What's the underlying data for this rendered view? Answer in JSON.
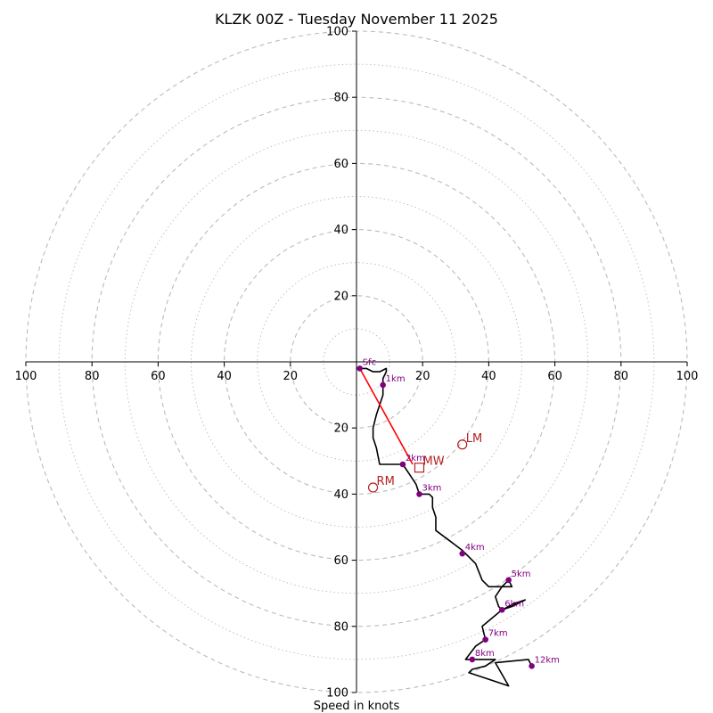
{
  "chart_data": {
    "type": "hodograph",
    "title": "KLZK 00Z - Tuesday November 11 2025",
    "xlabel": "Speed in knots",
    "range": [
      -100,
      100
    ],
    "major_ring_step": 20,
    "minor_ring_step": 10,
    "tick_values": [
      20,
      40,
      60,
      80,
      100
    ],
    "tick_labels": {
      "x": [
        "100",
        "80",
        "60",
        "40",
        "20",
        "20",
        "40",
        "60",
        "80",
        "100"
      ],
      "y": [
        "100",
        "80",
        "60",
        "40",
        "20",
        "20",
        "40",
        "60",
        "80",
        "100"
      ]
    },
    "colors": {
      "trace": "#000000",
      "height_points": "#800080",
      "shear_vector": "#ff0000",
      "motion_markers": "#b22222",
      "rings": "#bbbbbb"
    },
    "trace": [
      [
        1,
        -2
      ],
      [
        3,
        -2
      ],
      [
        5,
        -3
      ],
      [
        7,
        -3
      ],
      [
        9,
        -2
      ],
      [
        9,
        -3
      ],
      [
        8,
        -5
      ],
      [
        8,
        -7
      ],
      [
        8,
        -10
      ],
      [
        7,
        -13
      ],
      [
        6,
        -16
      ],
      [
        5,
        -20
      ],
      [
        5,
        -23
      ],
      [
        6,
        -26
      ],
      [
        7,
        -31
      ],
      [
        11,
        -31
      ],
      [
        14,
        -31
      ],
      [
        16,
        -34
      ],
      [
        18,
        -37
      ],
      [
        19,
        -40
      ],
      [
        22,
        -40
      ],
      [
        23,
        -41
      ],
      [
        23,
        -44
      ],
      [
        24,
        -47
      ],
      [
        24,
        -51
      ],
      [
        28,
        -54
      ],
      [
        32,
        -57
      ],
      [
        36,
        -61
      ],
      [
        38,
        -66
      ],
      [
        40,
        -68
      ],
      [
        44,
        -68
      ],
      [
        46,
        -66
      ],
      [
        47,
        -68
      ],
      [
        44,
        -68
      ],
      [
        42,
        -71
      ],
      [
        43,
        -74
      ],
      [
        44,
        -75
      ],
      [
        48,
        -73
      ],
      [
        51,
        -72
      ],
      [
        47,
        -74
      ],
      [
        44,
        -75
      ],
      [
        38,
        -80
      ],
      [
        39,
        -84
      ],
      [
        36,
        -86
      ],
      [
        33,
        -90
      ],
      [
        36,
        -90
      ],
      [
        42,
        -90
      ],
      [
        39,
        -92
      ],
      [
        35,
        -93
      ],
      [
        34,
        -94
      ],
      [
        46,
        -98
      ],
      [
        42,
        -91
      ],
      [
        52,
        -90
      ],
      [
        53,
        -92
      ]
    ],
    "height_points": [
      {
        "label": "Sfc",
        "x": 1,
        "y": -2
      },
      {
        "label": "1km",
        "x": 8,
        "y": -7
      },
      {
        "label": "2km",
        "x": 14,
        "y": -31
      },
      {
        "label": "3km",
        "x": 19,
        "y": -40
      },
      {
        "label": "4km",
        "x": 32,
        "y": -58
      },
      {
        "label": "5km",
        "x": 46,
        "y": -66
      },
      {
        "label": "6km",
        "x": 44,
        "y": -75
      },
      {
        "label": "7km",
        "x": 39,
        "y": -84
      },
      {
        "label": "8km",
        "x": 35,
        "y": -90
      },
      {
        "label": "12km",
        "x": 53,
        "y": -92
      }
    ],
    "shear_vector": {
      "from": [
        1,
        -2
      ],
      "to": [
        17,
        -31
      ]
    },
    "motions": [
      {
        "label": "LM",
        "x": 32,
        "y": -25,
        "marker": "circle"
      },
      {
        "label": "MW",
        "x": 19,
        "y": -32,
        "marker": "square"
      },
      {
        "label": "RM",
        "x": 5,
        "y": -38,
        "marker": "circle"
      }
    ]
  }
}
